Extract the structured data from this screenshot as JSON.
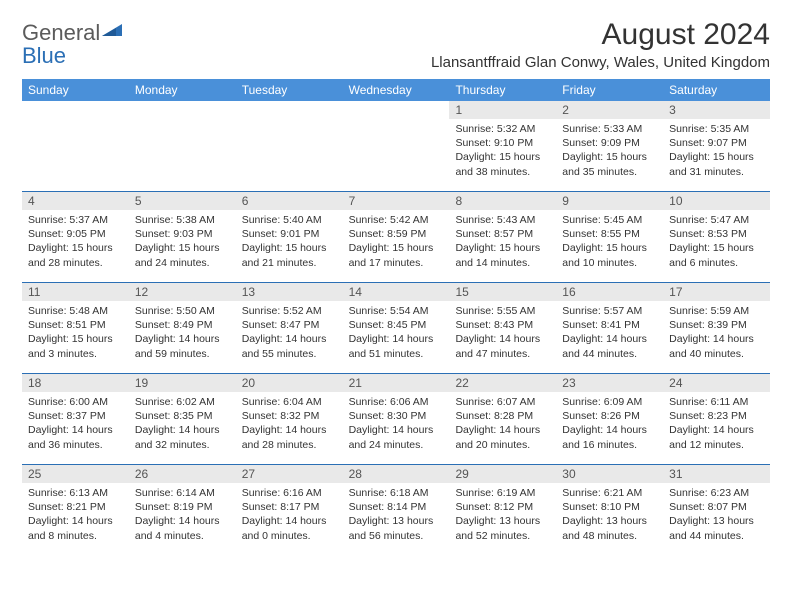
{
  "logo": {
    "text_gray": "General",
    "text_blue": "Blue",
    "shape_color": "#2b6fb5",
    "gray_color": "#5b5b5b"
  },
  "title": "August 2024",
  "location": "Llansantffraid Glan Conwy, Wales, United Kingdom",
  "colors": {
    "header_bg": "#4a90d9",
    "header_text": "#ffffff",
    "daynum_bg": "#e9e9e9",
    "daynum_text": "#555555",
    "divider": "#2b6fb5",
    "body_text": "#333333"
  },
  "days_of_week": [
    "Sunday",
    "Monday",
    "Tuesday",
    "Wednesday",
    "Thursday",
    "Friday",
    "Saturday"
  ],
  "weeks": [
    [
      {
        "n": "",
        "sunrise": "",
        "sunset": "",
        "daylight": ""
      },
      {
        "n": "",
        "sunrise": "",
        "sunset": "",
        "daylight": ""
      },
      {
        "n": "",
        "sunrise": "",
        "sunset": "",
        "daylight": ""
      },
      {
        "n": "",
        "sunrise": "",
        "sunset": "",
        "daylight": ""
      },
      {
        "n": "1",
        "sunrise": "Sunrise: 5:32 AM",
        "sunset": "Sunset: 9:10 PM",
        "daylight": "Daylight: 15 hours and 38 minutes."
      },
      {
        "n": "2",
        "sunrise": "Sunrise: 5:33 AM",
        "sunset": "Sunset: 9:09 PM",
        "daylight": "Daylight: 15 hours and 35 minutes."
      },
      {
        "n": "3",
        "sunrise": "Sunrise: 5:35 AM",
        "sunset": "Sunset: 9:07 PM",
        "daylight": "Daylight: 15 hours and 31 minutes."
      }
    ],
    [
      {
        "n": "4",
        "sunrise": "Sunrise: 5:37 AM",
        "sunset": "Sunset: 9:05 PM",
        "daylight": "Daylight: 15 hours and 28 minutes."
      },
      {
        "n": "5",
        "sunrise": "Sunrise: 5:38 AM",
        "sunset": "Sunset: 9:03 PM",
        "daylight": "Daylight: 15 hours and 24 minutes."
      },
      {
        "n": "6",
        "sunrise": "Sunrise: 5:40 AM",
        "sunset": "Sunset: 9:01 PM",
        "daylight": "Daylight: 15 hours and 21 minutes."
      },
      {
        "n": "7",
        "sunrise": "Sunrise: 5:42 AM",
        "sunset": "Sunset: 8:59 PM",
        "daylight": "Daylight: 15 hours and 17 minutes."
      },
      {
        "n": "8",
        "sunrise": "Sunrise: 5:43 AM",
        "sunset": "Sunset: 8:57 PM",
        "daylight": "Daylight: 15 hours and 14 minutes."
      },
      {
        "n": "9",
        "sunrise": "Sunrise: 5:45 AM",
        "sunset": "Sunset: 8:55 PM",
        "daylight": "Daylight: 15 hours and 10 minutes."
      },
      {
        "n": "10",
        "sunrise": "Sunrise: 5:47 AM",
        "sunset": "Sunset: 8:53 PM",
        "daylight": "Daylight: 15 hours and 6 minutes."
      }
    ],
    [
      {
        "n": "11",
        "sunrise": "Sunrise: 5:48 AM",
        "sunset": "Sunset: 8:51 PM",
        "daylight": "Daylight: 15 hours and 3 minutes."
      },
      {
        "n": "12",
        "sunrise": "Sunrise: 5:50 AM",
        "sunset": "Sunset: 8:49 PM",
        "daylight": "Daylight: 14 hours and 59 minutes."
      },
      {
        "n": "13",
        "sunrise": "Sunrise: 5:52 AM",
        "sunset": "Sunset: 8:47 PM",
        "daylight": "Daylight: 14 hours and 55 minutes."
      },
      {
        "n": "14",
        "sunrise": "Sunrise: 5:54 AM",
        "sunset": "Sunset: 8:45 PM",
        "daylight": "Daylight: 14 hours and 51 minutes."
      },
      {
        "n": "15",
        "sunrise": "Sunrise: 5:55 AM",
        "sunset": "Sunset: 8:43 PM",
        "daylight": "Daylight: 14 hours and 47 minutes."
      },
      {
        "n": "16",
        "sunrise": "Sunrise: 5:57 AM",
        "sunset": "Sunset: 8:41 PM",
        "daylight": "Daylight: 14 hours and 44 minutes."
      },
      {
        "n": "17",
        "sunrise": "Sunrise: 5:59 AM",
        "sunset": "Sunset: 8:39 PM",
        "daylight": "Daylight: 14 hours and 40 minutes."
      }
    ],
    [
      {
        "n": "18",
        "sunrise": "Sunrise: 6:00 AM",
        "sunset": "Sunset: 8:37 PM",
        "daylight": "Daylight: 14 hours and 36 minutes."
      },
      {
        "n": "19",
        "sunrise": "Sunrise: 6:02 AM",
        "sunset": "Sunset: 8:35 PM",
        "daylight": "Daylight: 14 hours and 32 minutes."
      },
      {
        "n": "20",
        "sunrise": "Sunrise: 6:04 AM",
        "sunset": "Sunset: 8:32 PM",
        "daylight": "Daylight: 14 hours and 28 minutes."
      },
      {
        "n": "21",
        "sunrise": "Sunrise: 6:06 AM",
        "sunset": "Sunset: 8:30 PM",
        "daylight": "Daylight: 14 hours and 24 minutes."
      },
      {
        "n": "22",
        "sunrise": "Sunrise: 6:07 AM",
        "sunset": "Sunset: 8:28 PM",
        "daylight": "Daylight: 14 hours and 20 minutes."
      },
      {
        "n": "23",
        "sunrise": "Sunrise: 6:09 AM",
        "sunset": "Sunset: 8:26 PM",
        "daylight": "Daylight: 14 hours and 16 minutes."
      },
      {
        "n": "24",
        "sunrise": "Sunrise: 6:11 AM",
        "sunset": "Sunset: 8:23 PM",
        "daylight": "Daylight: 14 hours and 12 minutes."
      }
    ],
    [
      {
        "n": "25",
        "sunrise": "Sunrise: 6:13 AM",
        "sunset": "Sunset: 8:21 PM",
        "daylight": "Daylight: 14 hours and 8 minutes."
      },
      {
        "n": "26",
        "sunrise": "Sunrise: 6:14 AM",
        "sunset": "Sunset: 8:19 PM",
        "daylight": "Daylight: 14 hours and 4 minutes."
      },
      {
        "n": "27",
        "sunrise": "Sunrise: 6:16 AM",
        "sunset": "Sunset: 8:17 PM",
        "daylight": "Daylight: 14 hours and 0 minutes."
      },
      {
        "n": "28",
        "sunrise": "Sunrise: 6:18 AM",
        "sunset": "Sunset: 8:14 PM",
        "daylight": "Daylight: 13 hours and 56 minutes."
      },
      {
        "n": "29",
        "sunrise": "Sunrise: 6:19 AM",
        "sunset": "Sunset: 8:12 PM",
        "daylight": "Daylight: 13 hours and 52 minutes."
      },
      {
        "n": "30",
        "sunrise": "Sunrise: 6:21 AM",
        "sunset": "Sunset: 8:10 PM",
        "daylight": "Daylight: 13 hours and 48 minutes."
      },
      {
        "n": "31",
        "sunrise": "Sunrise: 6:23 AM",
        "sunset": "Sunset: 8:07 PM",
        "daylight": "Daylight: 13 hours and 44 minutes."
      }
    ]
  ]
}
